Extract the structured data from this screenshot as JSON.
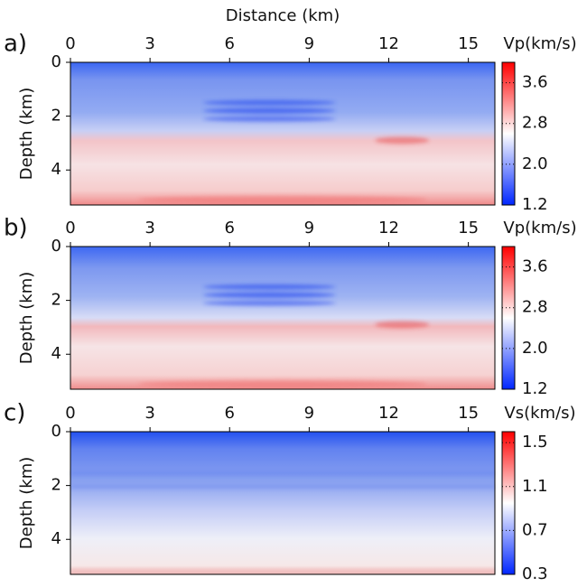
{
  "chart_data": [
    {
      "type": "heatmap",
      "panel_label": "a)",
      "xlabel": "Distance (km)",
      "ylabel": "Depth (km)",
      "xlim": [
        0,
        16
      ],
      "xticks": [
        0,
        3,
        6,
        9,
        12,
        15
      ],
      "ylim": [
        5.3,
        0
      ],
      "yticks": [
        0,
        2,
        4
      ],
      "colorbar_label": "Vp(km/s)",
      "clim": [
        1.2,
        4.0
      ],
      "cticks": [
        1.2,
        {
          "value": 2,
          "label": "2.0"
        },
        2.8,
        3.6
      ],
      "colormap": [
        "#0026ff",
        "#ffffff",
        "#ff0000"
      ]
    },
    {
      "type": "heatmap",
      "panel_label": "b)",
      "ylabel": "Depth (km)",
      "xlim": [
        0,
        16
      ],
      "xticks": [
        0,
        3,
        6,
        9,
        12,
        15
      ],
      "ylim": [
        5.3,
        0
      ],
      "yticks": [
        0,
        2,
        4
      ],
      "colorbar_label": "Vp(km/s)",
      "clim": [
        1.2,
        4.0
      ],
      "cticks": [
        1.2,
        {
          "value": 2,
          "label": "2.0"
        },
        2.8,
        3.6
      ],
      "colormap": [
        "#0026ff",
        "#ffffff",
        "#ff0000"
      ]
    },
    {
      "type": "heatmap",
      "panel_label": "c)",
      "ylabel": "Depth (km)",
      "xlim": [
        0,
        16
      ],
      "xticks": [
        0,
        3,
        6,
        9,
        12,
        15
      ],
      "ylim": [
        5.3,
        0
      ],
      "yticks": [
        0,
        2,
        4
      ],
      "colorbar_label": "Vs(km/s)",
      "clim": [
        0.3,
        1.6
      ],
      "cticks": [
        0.3,
        0.7,
        1.1,
        1.5
      ],
      "colormap": [
        "#0026ff",
        "#ffffff",
        "#ff0000"
      ]
    }
  ]
}
